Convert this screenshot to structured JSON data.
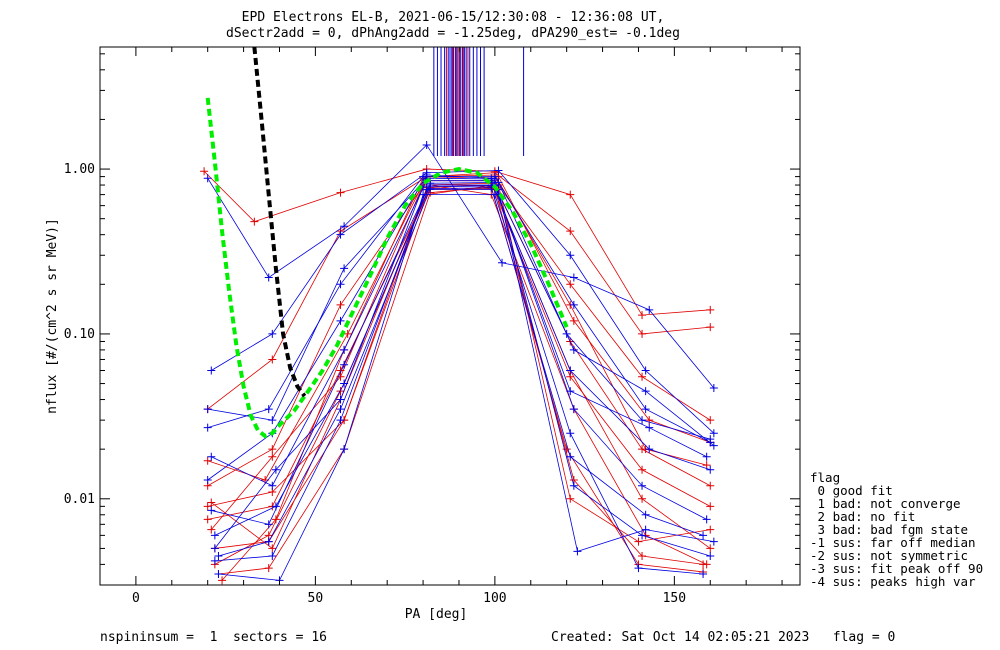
{
  "title": {
    "line1": "EPD Electrons EL-B, 2021-06-15/12:30:08 - 12:36:08 UT,",
    "line2": "dSectr2add = 0, dPhAng2add = -1.25deg, dPA290_est=  -0.1deg"
  },
  "footer": {
    "left": "nspininsum =  1  sectors = 16",
    "right": "Created: Sat Oct 14 02:05:21 2023   flag = 0"
  },
  "legend": {
    "title": "flag",
    "items": [
      " 0 good fit",
      " 1 bad: not converge",
      " 2 bad: no fit",
      " 3 bad: bad fgm state",
      "-1 sus: far off median",
      "-2 sus: not symmetric",
      "-3 sus: fit peak off 90",
      "-4 sus: peaks high var"
    ]
  },
  "colors": {
    "red": "#e00000",
    "blue": "#0000e0",
    "green": "#00ee00",
    "black": "#000000",
    "axis": "#000000"
  },
  "chart_data": {
    "type": "line",
    "xlabel": "PA [deg]",
    "ylabel": "nflux [#/(cm^2 s sr MeV)]",
    "xlim": [
      -10,
      185
    ],
    "ylim": [
      0.003,
      5.5
    ],
    "yscale": "log",
    "x_ticks": [
      0,
      50,
      100,
      150
    ],
    "x_tick_labels": [
      "0",
      "50",
      "100",
      "150"
    ],
    "y_ticks": [
      0.01,
      0.1,
      1.0
    ],
    "y_tick_labels": [
      "0.01",
      "0.10",
      "1.00"
    ],
    "grid": false,
    "series": [
      {
        "color": "red",
        "marker": "+",
        "x": [
          19,
          33,
          57,
          81,
          100,
          121,
          141,
          160
        ],
        "y": [
          0.97,
          0.48,
          0.72,
          1.0,
          0.97,
          0.7,
          0.13,
          0.14
        ]
      },
      {
        "color": "red",
        "marker": "+",
        "x": [
          20,
          38,
          57,
          81,
          100,
          121,
          141,
          160
        ],
        "y": [
          0.035,
          0.07,
          0.42,
          0.9,
          0.95,
          0.42,
          0.1,
          0.11
        ]
      },
      {
        "color": "red",
        "marker": "+",
        "x": [
          20,
          38,
          57,
          81,
          100,
          121,
          141,
          160
        ],
        "y": [
          0.012,
          0.02,
          0.15,
          0.85,
          0.85,
          0.2,
          0.055,
          0.03
        ]
      },
      {
        "color": "red",
        "marker": "+",
        "x": [
          20,
          38,
          57,
          81,
          100,
          121,
          141,
          160
        ],
        "y": [
          0.0075,
          0.009,
          0.06,
          0.7,
          0.8,
          0.09,
          0.02,
          0.012
        ]
      },
      {
        "color": "red",
        "marker": "+",
        "x": [
          21,
          38,
          57,
          81,
          100,
          121,
          141,
          160
        ],
        "y": [
          0.0095,
          0.005,
          0.04,
          0.75,
          0.75,
          0.06,
          0.01,
          0.005
        ]
      },
      {
        "color": "red",
        "marker": "+",
        "x": [
          22,
          37,
          58,
          82,
          99,
          122,
          142,
          159
        ],
        "y": [
          0.005,
          0.0055,
          0.03,
          0.8,
          0.7,
          0.035,
          0.006,
          0.004
        ]
      },
      {
        "color": "red",
        "marker": "+",
        "x": [
          23,
          37,
          58,
          82,
          99,
          120,
          140,
          158
        ],
        "y": [
          0.0035,
          0.0038,
          0.02,
          0.72,
          0.78,
          0.02,
          0.004,
          0.0036
        ]
      },
      {
        "color": "red",
        "marker": "+",
        "x": [
          24,
          39,
          58,
          80,
          101,
          122,
          143,
          160
        ],
        "y": [
          0.0032,
          0.0075,
          0.08,
          0.88,
          0.9,
          0.12,
          0.03,
          0.022
        ]
      },
      {
        "color": "red",
        "marker": "+",
        "x": [
          20,
          36,
          59,
          81,
          100,
          121,
          142,
          159
        ],
        "y": [
          0.017,
          0.013,
          0.1,
          0.9,
          0.92,
          0.15,
          0.02,
          0.016
        ]
      },
      {
        "color": "red",
        "marker": "+",
        "x": [
          21,
          38,
          57,
          80,
          99,
          121,
          141,
          160
        ],
        "y": [
          0.0065,
          0.018,
          0.055,
          0.8,
          0.82,
          0.055,
          0.015,
          0.009
        ]
      },
      {
        "color": "red",
        "marker": "+",
        "x": [
          20,
          38,
          58,
          81,
          100,
          122,
          141,
          158
        ],
        "y": [
          0.009,
          0.011,
          0.03,
          0.77,
          0.76,
          0.013,
          0.0045,
          0.004
        ]
      },
      {
        "color": "red",
        "marker": "+",
        "x": [
          22,
          37,
          57,
          82,
          101,
          121,
          140,
          160
        ],
        "y": [
          0.004,
          0.006,
          0.045,
          0.78,
          0.8,
          0.01,
          0.0055,
          0.0065
        ]
      },
      {
        "color": "blue",
        "marker": "+",
        "x": [
          20,
          37,
          58,
          81,
          102,
          122,
          143,
          161
        ],
        "y": [
          0.88,
          0.22,
          0.45,
          1.4,
          0.27,
          0.22,
          0.14,
          0.047
        ]
      },
      {
        "color": "blue",
        "marker": "+",
        "x": [
          21,
          38,
          57,
          81,
          101,
          121,
          142,
          161
        ],
        "y": [
          0.06,
          0.1,
          0.4,
          0.95,
          0.98,
          0.3,
          0.06,
          0.025
        ]
      },
      {
        "color": "blue",
        "marker": "+",
        "x": [
          20,
          37,
          57,
          80,
          100,
          122,
          142,
          160
        ],
        "y": [
          0.027,
          0.035,
          0.2,
          0.9,
          0.9,
          0.15,
          0.035,
          0.022
        ]
      },
      {
        "color": "blue",
        "marker": "+",
        "x": [
          21,
          38,
          58,
          81,
          99,
          121,
          143,
          160
        ],
        "y": [
          0.018,
          0.012,
          0.08,
          0.85,
          0.85,
          0.06,
          0.02,
          0.015
        ]
      },
      {
        "color": "blue",
        "marker": "+",
        "x": [
          22,
          39,
          58,
          82,
          100,
          122,
          141,
          159
        ],
        "y": [
          0.006,
          0.009,
          0.05,
          0.8,
          0.8,
          0.035,
          0.012,
          0.0075
        ]
      },
      {
        "color": "blue",
        "marker": "+",
        "x": [
          22,
          38,
          57,
          81,
          101,
          123,
          142,
          161
        ],
        "y": [
          0.0042,
          0.0045,
          0.03,
          0.75,
          0.75,
          0.0048,
          0.0065,
          0.0055
        ]
      },
      {
        "color": "blue",
        "marker": "+",
        "x": [
          23,
          40,
          58,
          80,
          100,
          121,
          140,
          158
        ],
        "y": [
          0.0035,
          0.0032,
          0.02,
          0.7,
          0.7,
          0.025,
          0.0038,
          0.0035
        ]
      },
      {
        "color": "blue",
        "marker": "+",
        "x": [
          20,
          38,
          57,
          81,
          99,
          120,
          141,
          160
        ],
        "y": [
          0.013,
          0.025,
          0.12,
          0.92,
          0.88,
          0.1,
          0.03,
          0.023
        ]
      },
      {
        "color": "blue",
        "marker": "+",
        "x": [
          21,
          37,
          58,
          82,
          101,
          122,
          142,
          161
        ],
        "y": [
          0.0085,
          0.007,
          0.065,
          0.82,
          0.83,
          0.08,
          0.045,
          0.021
        ]
      },
      {
        "color": "blue",
        "marker": "+",
        "x": [
          22,
          39,
          57,
          80,
          100,
          121,
          143,
          159
        ],
        "y": [
          0.005,
          0.015,
          0.04,
          0.78,
          0.79,
          0.045,
          0.027,
          0.018
        ]
      },
      {
        "color": "blue",
        "marker": "+",
        "x": [
          20,
          38,
          58,
          81,
          100,
          122,
          141,
          160
        ],
        "y": [
          0.035,
          0.03,
          0.25,
          0.88,
          0.87,
          0.012,
          0.006,
          0.0045
        ]
      },
      {
        "color": "blue",
        "marker": "+",
        "x": [
          23,
          37,
          57,
          82,
          99,
          121,
          142,
          158
        ],
        "y": [
          0.0045,
          0.0055,
          0.035,
          0.76,
          0.77,
          0.018,
          0.008,
          0.006
        ]
      }
    ],
    "fit_curves": [
      {
        "color": "green",
        "style": "dashed",
        "x": [
          20,
          22,
          24,
          26,
          28,
          30,
          32,
          34,
          36,
          38,
          40,
          44,
          48,
          52,
          56,
          60,
          65,
          70,
          75,
          80,
          85,
          90,
          95,
          100,
          105,
          110,
          115,
          120
        ],
        "y": [
          2.7,
          1.1,
          0.42,
          0.18,
          0.085,
          0.048,
          0.032,
          0.026,
          0.024,
          0.025,
          0.028,
          0.034,
          0.045,
          0.06,
          0.085,
          0.13,
          0.22,
          0.38,
          0.6,
          0.82,
          0.95,
          1.0,
          0.95,
          0.78,
          0.55,
          0.35,
          0.2,
          0.11
        ]
      },
      {
        "color": "black",
        "style": "dashed",
        "x": [
          33,
          35,
          37,
          39,
          41,
          43,
          45,
          47
        ],
        "y": [
          5.5,
          2.0,
          0.7,
          0.25,
          0.1,
          0.062,
          0.048,
          0.042
        ]
      }
    ],
    "vertical_lines": [
      {
        "color": "blue",
        "x": [
          83,
          84,
          85,
          86,
          87,
          87.5,
          88,
          88.5,
          89,
          89.5,
          90,
          90.5,
          91,
          91.5,
          92,
          93,
          94,
          95,
          96,
          97,
          108
        ],
        "y_from": 1.2
      },
      {
        "color": "red",
        "x": [
          86.5,
          88.2,
          89.2,
          90.2,
          91.2,
          92.5
        ],
        "y_from": 1.2
      }
    ]
  }
}
